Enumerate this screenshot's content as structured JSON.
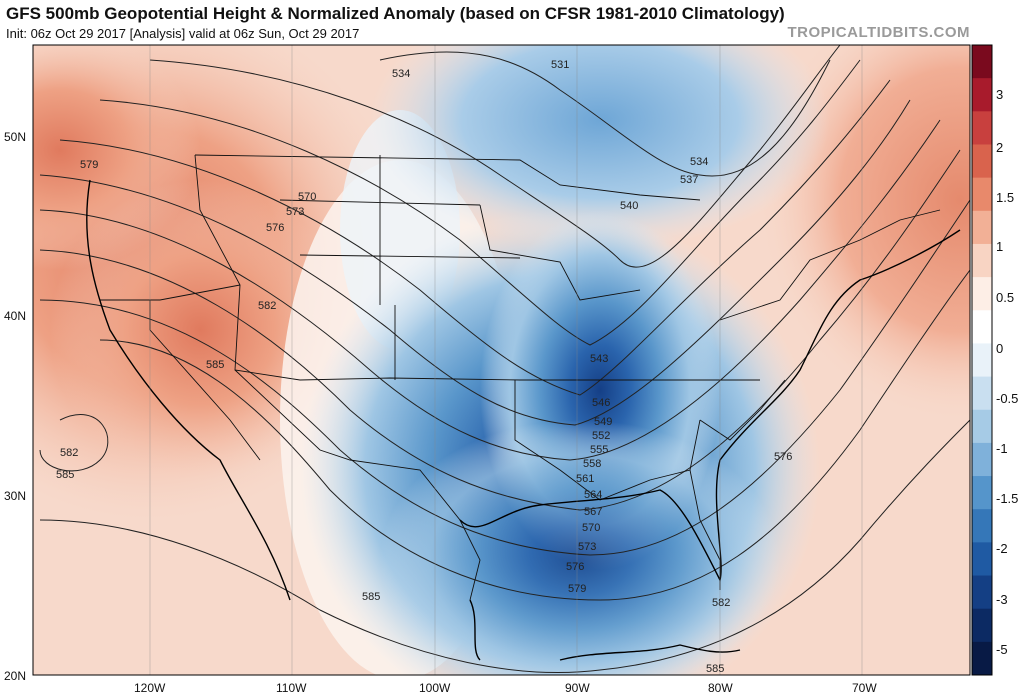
{
  "header": {
    "title": "GFS 500mb Geopotential Height & Normalized Anomaly (based on CFSR 1981-2010 Climatology)",
    "subtitle": "Init: 06z Oct 29 2017   [Analysis]   valid at 06z Sun, Oct 29 2017",
    "brand": "TROPICALTIDBITS.COM"
  },
  "axes": {
    "lat_labels": [
      "50N",
      "40N",
      "30N",
      "20N"
    ],
    "lon_labels": [
      "120W",
      "110W",
      "100W",
      "90W",
      "80W",
      "70W"
    ]
  },
  "colorbar": {
    "labels": [
      "3",
      "2",
      "1.5",
      "1",
      "0.5",
      "0",
      "-0.5",
      "-1",
      "-1.5",
      "-2",
      "-3",
      "-5"
    ],
    "colors": [
      "#7a0a1e",
      "#a81b2c",
      "#c8403e",
      "#d9634d",
      "#e8896b",
      "#f2b096",
      "#f8d4c3",
      "#fdeee6",
      "#ffffff",
      "#e9f2f9",
      "#c9dff0",
      "#a6cbe6",
      "#7fb1da",
      "#5595cb",
      "#3577b8",
      "#1f5aa3",
      "#143f84",
      "#0c2a63",
      "#081a45"
    ]
  },
  "contours": {
    "labels": [
      "531",
      "534",
      "534",
      "537",
      "540",
      "543",
      "546",
      "549",
      "552",
      "555",
      "558",
      "561",
      "564",
      "567",
      "570",
      "570",
      "573",
      "573",
      "576",
      "576",
      "576",
      "579",
      "579",
      "582",
      "582",
      "582",
      "585",
      "585",
      "585",
      "585"
    ]
  }
}
